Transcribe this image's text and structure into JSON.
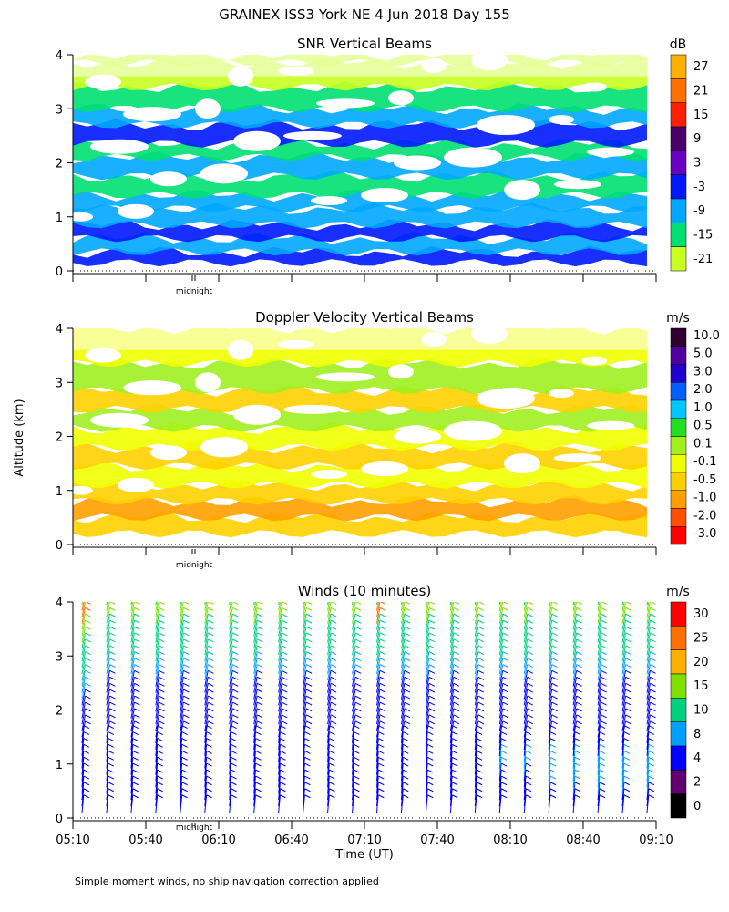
{
  "title": "GRAINEX ISS3 York NE   4 Jun 2018 Day 155",
  "y_axis_label": "Altitude (km)",
  "footnote": "Simple moment winds, no ship navigation correction applied",
  "chart_data": [
    {
      "type": "heatmap",
      "title": "SNR Vertical Beams",
      "ylim": [
        0,
        4
      ],
      "y_ticks": [
        "0",
        "1",
        "2",
        "3",
        "4"
      ],
      "midnight_label": "midnight",
      "colorbar": {
        "unit": "dB",
        "labels": [
          "27",
          "21",
          "15",
          "9",
          "3",
          "-3",
          "-9",
          "-15",
          "-21"
        ],
        "colors": [
          "#ffb000",
          "#ff7000",
          "#ff2000",
          "#4a006a",
          "#6a00c0",
          "#0018ff",
          "#00a8ff",
          "#00e070",
          "#c8ff20"
        ]
      },
      "layers": [
        {
          "alt": 0.15,
          "color": "#0018ff"
        },
        {
          "alt": 0.35,
          "color": "#00a8ff"
        },
        {
          "alt": 0.6,
          "color": "#0018ff"
        },
        {
          "alt": 0.85,
          "color": "#00a8ff"
        },
        {
          "alt": 1.15,
          "color": "#00a8ff"
        },
        {
          "alt": 1.4,
          "color": "#00e070"
        },
        {
          "alt": 1.75,
          "color": "#00a8ff"
        },
        {
          "alt": 2.1,
          "color": "#00e070"
        },
        {
          "alt": 2.35,
          "color": "#0018ff"
        },
        {
          "alt": 2.7,
          "color": "#00a8ff"
        },
        {
          "alt": 3.0,
          "color": "#00e070"
        },
        {
          "alt": 3.4,
          "color": "#c8ff20"
        },
        {
          "alt": 3.85,
          "color": "#c8ff20"
        }
      ]
    },
    {
      "type": "heatmap",
      "title": "Doppler Velocity Vertical Beams",
      "ylim": [
        0,
        4
      ],
      "y_ticks": [
        "0",
        "1",
        "2",
        "3",
        "4"
      ],
      "midnight_label": "midnight",
      "colorbar": {
        "unit": "m/s",
        "labels": [
          "10.0",
          "5.0",
          "3.0",
          "2.0",
          "1.0",
          "0.5",
          "0.1",
          "-0.1",
          "-0.5",
          "-1.0",
          "-2.0",
          "-3.0"
        ],
        "colors": [
          "#300030",
          "#5000a0",
          "#2000d0",
          "#0060ff",
          "#00c8ff",
          "#20e020",
          "#a0f020",
          "#f0ff00",
          "#ffd000",
          "#ffa000",
          "#ff5000",
          "#ff0000"
        ]
      },
      "layers": [
        {
          "alt": 0.2,
          "color": "#ffd000"
        },
        {
          "alt": 0.5,
          "color": "#ffa000"
        },
        {
          "alt": 0.8,
          "color": "#ffd000"
        },
        {
          "alt": 1.1,
          "color": "#f0ff00"
        },
        {
          "alt": 1.45,
          "color": "#ffd000"
        },
        {
          "alt": 1.8,
          "color": "#f0ff00"
        },
        {
          "alt": 2.15,
          "color": "#a0f020"
        },
        {
          "alt": 2.5,
          "color": "#ffd000"
        },
        {
          "alt": 2.85,
          "color": "#a0f020"
        },
        {
          "alt": 3.35,
          "color": "#f0ff00"
        }
      ]
    },
    {
      "type": "wind_barbs",
      "title": "Winds (10 minutes)",
      "ylim": [
        0,
        4
      ],
      "y_ticks": [
        "0",
        "1",
        "2",
        "3",
        "4"
      ],
      "midnight_label": "midnight",
      "x_tick_labels": [
        "05:10",
        "05:40",
        "06:10",
        "06:40",
        "07:10",
        "07:40",
        "08:10",
        "08:40",
        "09:10"
      ],
      "xlabel": "Time (UT)",
      "colorbar": {
        "unit": "m/s",
        "labels": [
          "30",
          "25",
          "20",
          "15",
          "10",
          "8",
          "4",
          "2",
          "0"
        ],
        "colors": [
          "#ff0000",
          "#ff7000",
          "#ffb000",
          "#80e000",
          "#00d080",
          "#00a0ff",
          "#0000ff",
          "#600070",
          "#000000"
        ]
      },
      "profiles": [
        {
          "time": "05:10",
          "speeds": [
            4,
            4,
            5,
            4,
            6,
            5,
            8,
            10,
            12,
            15,
            28,
            18
          ]
        },
        {
          "time": "05:20",
          "speeds": [
            4,
            5,
            5,
            4,
            5,
            6,
            7,
            9,
            11,
            14,
            16,
            14
          ]
        },
        {
          "time": "05:30",
          "speeds": [
            4,
            5,
            5,
            4,
            5,
            6,
            7,
            9,
            11,
            14,
            16,
            14
          ]
        },
        {
          "time": "05:40",
          "speeds": [
            5,
            5,
            5,
            4,
            5,
            6,
            7,
            9,
            11,
            14,
            16,
            14
          ]
        },
        {
          "time": "05:50",
          "speeds": [
            5,
            5,
            6,
            4,
            5,
            6,
            7,
            9,
            11,
            14,
            16,
            14
          ]
        },
        {
          "time": "06:00",
          "speeds": [
            5,
            5,
            6,
            4,
            5,
            6,
            7,
            9,
            11,
            14,
            16,
            14
          ]
        },
        {
          "time": "06:10",
          "speeds": [
            5,
            6,
            6,
            4,
            5,
            6,
            7,
            9,
            11,
            14,
            16,
            14
          ]
        },
        {
          "time": "06:20",
          "speeds": [
            5,
            6,
            6,
            4,
            5,
            6,
            7,
            9,
            11,
            14,
            16,
            14
          ]
        },
        {
          "time": "06:30",
          "speeds": [
            5,
            6,
            6,
            4,
            5,
            6,
            7,
            9,
            11,
            14,
            16,
            14
          ]
        },
        {
          "time": "06:40",
          "speeds": [
            6,
            6,
            6,
            4,
            5,
            6,
            7,
            9,
            11,
            14,
            16,
            14
          ]
        },
        {
          "time": "06:50",
          "speeds": [
            6,
            6,
            6,
            4,
            5,
            6,
            7,
            9,
            11,
            14,
            16,
            14
          ]
        },
        {
          "time": "07:00",
          "speeds": [
            6,
            6,
            7,
            4,
            5,
            6,
            7,
            9,
            11,
            14,
            16,
            14
          ]
        },
        {
          "time": "07:10",
          "speeds": [
            6,
            6,
            7,
            4,
            5,
            6,
            7,
            9,
            11,
            14,
            26,
            14
          ]
        },
        {
          "time": "07:20",
          "speeds": [
            6,
            7,
            7,
            4,
            5,
            6,
            7,
            9,
            11,
            14,
            16,
            14
          ]
        },
        {
          "time": "07:30",
          "speeds": [
            6,
            7,
            7,
            4,
            5,
            6,
            7,
            9,
            11,
            14,
            16,
            14
          ]
        },
        {
          "time": "07:40",
          "speeds": [
            6,
            7,
            7,
            4,
            5,
            6,
            7,
            9,
            11,
            14,
            16,
            14
          ]
        },
        {
          "time": "07:50",
          "speeds": [
            6,
            7,
            7,
            4,
            5,
            6,
            7,
            9,
            11,
            14,
            16,
            14
          ]
        },
        {
          "time": "08:00",
          "speeds": [
            7,
            7,
            8,
            4,
            5,
            6,
            7,
            9,
            11,
            14,
            16,
            14
          ]
        },
        {
          "time": "08:10",
          "speeds": [
            7,
            7,
            8,
            4,
            5,
            6,
            7,
            9,
            11,
            14,
            16,
            14
          ]
        },
        {
          "time": "08:20",
          "speeds": [
            7,
            8,
            8,
            4,
            5,
            6,
            7,
            9,
            11,
            14,
            16,
            14
          ]
        },
        {
          "time": "08:30",
          "speeds": [
            7,
            8,
            8,
            4,
            5,
            6,
            7,
            9,
            11,
            14,
            16,
            14
          ]
        },
        {
          "time": "08:40",
          "speeds": [
            7,
            8,
            8,
            4,
            5,
            6,
            7,
            9,
            11,
            14,
            16,
            14
          ]
        },
        {
          "time": "08:50",
          "speeds": [
            7,
            8,
            9,
            4,
            5,
            6,
            7,
            9,
            11,
            14,
            16,
            14
          ]
        },
        {
          "time": "09:00",
          "speeds": [
            7,
            8,
            9,
            4,
            5,
            6,
            7,
            9,
            11,
            14,
            16,
            14
          ]
        }
      ],
      "profile_altitudes": [
        0.1,
        0.45,
        0.8,
        1.15,
        1.5,
        1.85,
        2.2,
        2.55,
        2.9,
        3.25,
        3.6,
        3.95
      ]
    }
  ]
}
